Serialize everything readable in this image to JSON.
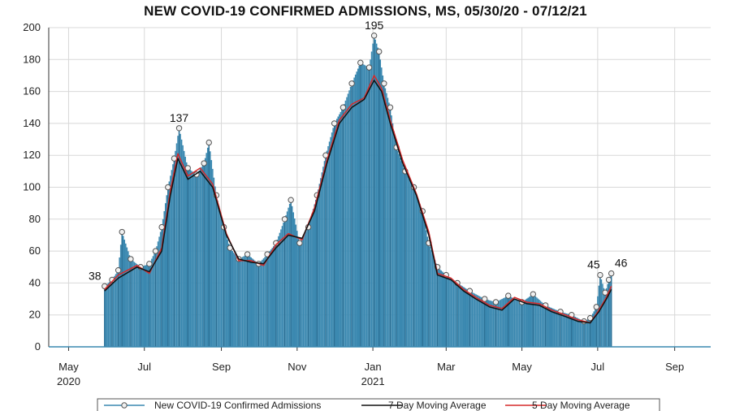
{
  "chart_data": {
    "type": "bar",
    "title": "NEW COVID-19 CONFIRMED ADMISSIONS, MS, 05/30/20 - 07/12/21",
    "xlabel": "",
    "ylabel": "",
    "ylim": [
      0,
      200
    ],
    "yticks": [
      0,
      20,
      40,
      60,
      80,
      100,
      120,
      140,
      160,
      180,
      200
    ],
    "xlim": [
      "2020-04-15",
      "2021-09-30"
    ],
    "xticks": [
      {
        "date": "2020-05-01",
        "label": "May",
        "sublabel": "2020"
      },
      {
        "date": "2020-07-01",
        "label": "Jul",
        "sublabel": ""
      },
      {
        "date": "2020-09-01",
        "label": "Sep",
        "sublabel": ""
      },
      {
        "date": "2020-11-01",
        "label": "Nov",
        "sublabel": ""
      },
      {
        "date": "2021-01-01",
        "label": "Jan",
        "sublabel": "2021"
      },
      {
        "date": "2021-03-01",
        "label": "Mar",
        "sublabel": ""
      },
      {
        "date": "2021-05-01",
        "label": "May",
        "sublabel": ""
      },
      {
        "date": "2021-07-01",
        "label": "Jul",
        "sublabel": ""
      },
      {
        "date": "2021-09-01",
        "label": "Sep",
        "sublabel": ""
      }
    ],
    "grid": true,
    "series_points": [
      [
        "2020-05-30",
        38
      ],
      [
        "2020-06-05",
        42
      ],
      [
        "2020-06-10",
        48
      ],
      [
        "2020-06-13",
        72
      ],
      [
        "2020-06-20",
        55
      ],
      [
        "2020-06-28",
        50
      ],
      [
        "2020-07-05",
        52
      ],
      [
        "2020-07-10",
        60
      ],
      [
        "2020-07-15",
        75
      ],
      [
        "2020-07-20",
        100
      ],
      [
        "2020-07-25",
        118
      ],
      [
        "2020-07-29",
        137
      ],
      [
        "2020-08-05",
        112
      ],
      [
        "2020-08-12",
        108
      ],
      [
        "2020-08-18",
        115
      ],
      [
        "2020-08-22",
        128
      ],
      [
        "2020-08-28",
        95
      ],
      [
        "2020-09-03",
        75
      ],
      [
        "2020-09-08",
        62
      ],
      [
        "2020-09-15",
        55
      ],
      [
        "2020-09-22",
        58
      ],
      [
        "2020-10-01",
        52
      ],
      [
        "2020-10-08",
        58
      ],
      [
        "2020-10-15",
        65
      ],
      [
        "2020-10-22",
        80
      ],
      [
        "2020-10-27",
        92
      ],
      [
        "2020-11-03",
        65
      ],
      [
        "2020-11-10",
        75
      ],
      [
        "2020-11-17",
        95
      ],
      [
        "2020-11-24",
        120
      ],
      [
        "2020-12-01",
        140
      ],
      [
        "2020-12-08",
        150
      ],
      [
        "2020-12-15",
        165
      ],
      [
        "2020-12-22",
        178
      ],
      [
        "2020-12-29",
        175
      ],
      [
        "2021-01-02",
        195
      ],
      [
        "2021-01-06",
        185
      ],
      [
        "2021-01-10",
        165
      ],
      [
        "2021-01-15",
        150
      ],
      [
        "2021-01-20",
        125
      ],
      [
        "2021-01-27",
        110
      ],
      [
        "2021-02-03",
        100
      ],
      [
        "2021-02-10",
        85
      ],
      [
        "2021-02-15",
        65
      ],
      [
        "2021-02-22",
        50
      ],
      [
        "2021-03-01",
        45
      ],
      [
        "2021-03-10",
        40
      ],
      [
        "2021-03-20",
        35
      ],
      [
        "2021-04-01",
        30
      ],
      [
        "2021-04-10",
        28
      ],
      [
        "2021-04-20",
        32
      ],
      [
        "2021-05-01",
        28
      ],
      [
        "2021-05-10",
        33
      ],
      [
        "2021-05-20",
        26
      ],
      [
        "2021-06-01",
        22
      ],
      [
        "2021-06-10",
        20
      ],
      [
        "2021-06-20",
        16
      ],
      [
        "2021-06-25",
        18
      ],
      [
        "2021-06-30",
        25
      ],
      [
        "2021-07-03",
        45
      ],
      [
        "2021-07-07",
        34
      ],
      [
        "2021-07-10",
        42
      ],
      [
        "2021-07-12",
        46
      ]
    ],
    "moving_avg_7": [
      [
        "2020-05-30",
        35
      ],
      [
        "2020-06-10",
        43
      ],
      [
        "2020-06-25",
        50
      ],
      [
        "2020-07-05",
        47
      ],
      [
        "2020-07-15",
        60
      ],
      [
        "2020-07-22",
        95
      ],
      [
        "2020-07-28",
        118
      ],
      [
        "2020-08-05",
        105
      ],
      [
        "2020-08-15",
        110
      ],
      [
        "2020-08-25",
        100
      ],
      [
        "2020-09-05",
        70
      ],
      [
        "2020-09-15",
        55
      ],
      [
        "2020-09-25",
        53
      ],
      [
        "2020-10-05",
        52
      ],
      [
        "2020-10-15",
        62
      ],
      [
        "2020-10-25",
        70
      ],
      [
        "2020-11-05",
        68
      ],
      [
        "2020-11-15",
        85
      ],
      [
        "2020-11-25",
        115
      ],
      [
        "2020-12-05",
        140
      ],
      [
        "2020-12-15",
        150
      ],
      [
        "2020-12-25",
        155
      ],
      [
        "2021-01-02",
        167
      ],
      [
        "2021-01-08",
        160
      ],
      [
        "2021-01-15",
        140
      ],
      [
        "2021-01-25",
        115
      ],
      [
        "2021-02-05",
        95
      ],
      [
        "2021-02-15",
        70
      ],
      [
        "2021-02-22",
        45
      ],
      [
        "2021-03-05",
        42
      ],
      [
        "2021-03-15",
        35
      ],
      [
        "2021-03-25",
        30
      ],
      [
        "2021-04-05",
        25
      ],
      [
        "2021-04-15",
        23
      ],
      [
        "2021-04-25",
        30
      ],
      [
        "2021-05-05",
        27
      ],
      [
        "2021-05-15",
        26
      ],
      [
        "2021-05-25",
        22
      ],
      [
        "2021-06-05",
        19
      ],
      [
        "2021-06-15",
        16
      ],
      [
        "2021-06-25",
        15
      ],
      [
        "2021-07-02",
        22
      ],
      [
        "2021-07-08",
        30
      ],
      [
        "2021-07-12",
        36
      ]
    ],
    "moving_avg_5": [
      [
        "2020-05-30",
        36
      ],
      [
        "2020-06-10",
        45
      ],
      [
        "2020-06-25",
        51
      ],
      [
        "2020-07-05",
        46
      ],
      [
        "2020-07-15",
        62
      ],
      [
        "2020-07-22",
        98
      ],
      [
        "2020-07-28",
        121
      ],
      [
        "2020-08-05",
        107
      ],
      [
        "2020-08-15",
        112
      ],
      [
        "2020-08-25",
        102
      ],
      [
        "2020-09-05",
        71
      ],
      [
        "2020-09-15",
        54
      ],
      [
        "2020-09-25",
        54
      ],
      [
        "2020-10-05",
        51
      ],
      [
        "2020-10-15",
        64
      ],
      [
        "2020-10-25",
        71
      ],
      [
        "2020-11-05",
        67
      ],
      [
        "2020-11-15",
        87
      ],
      [
        "2020-11-25",
        117
      ],
      [
        "2020-12-05",
        142
      ],
      [
        "2020-12-15",
        152
      ],
      [
        "2020-12-25",
        156
      ],
      [
        "2021-01-02",
        170
      ],
      [
        "2021-01-08",
        162
      ],
      [
        "2021-01-15",
        142
      ],
      [
        "2021-01-25",
        117
      ],
      [
        "2021-02-05",
        96
      ],
      [
        "2021-02-15",
        72
      ],
      [
        "2021-02-22",
        46
      ],
      [
        "2021-03-05",
        43
      ],
      [
        "2021-03-15",
        36
      ],
      [
        "2021-03-25",
        31
      ],
      [
        "2021-04-05",
        26
      ],
      [
        "2021-04-15",
        24
      ],
      [
        "2021-04-25",
        31
      ],
      [
        "2021-05-05",
        28
      ],
      [
        "2021-05-15",
        27
      ],
      [
        "2021-05-25",
        23
      ],
      [
        "2021-06-05",
        20
      ],
      [
        "2021-06-15",
        17
      ],
      [
        "2021-06-25",
        15
      ],
      [
        "2021-07-02",
        23
      ],
      [
        "2021-07-08",
        31
      ],
      [
        "2021-07-12",
        38
      ]
    ],
    "annotations": [
      {
        "date": "2020-05-30",
        "value": 38,
        "text": "38"
      },
      {
        "date": "2020-07-29",
        "value": 137,
        "text": "137"
      },
      {
        "date": "2021-01-02",
        "value": 195,
        "text": "195"
      },
      {
        "date": "2021-07-03",
        "value": 45,
        "text": "45"
      },
      {
        "date": "2021-07-12",
        "value": 46,
        "text": "46"
      }
    ],
    "legend": {
      "placement": "bottom",
      "entries": [
        {
          "label": "New COVID-19 Confirmed Admissions",
          "color": "#3a88b0"
        },
        {
          "label": "7 Day Moving Average",
          "color": "#111111"
        },
        {
          "label": "5 Day Moving Average",
          "color": "#d62a2a"
        }
      ]
    },
    "colors": {
      "bar": "#3a88b0",
      "bar_edge": "#2c6f94",
      "ma7": "#111111",
      "ma5": "#d62a2a",
      "grid": "#d8d8d8"
    }
  }
}
